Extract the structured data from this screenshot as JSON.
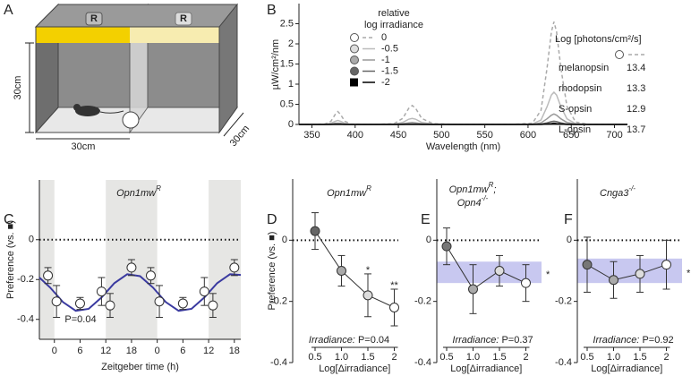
{
  "panel_labels": [
    "A",
    "B",
    "C",
    "D",
    "E",
    "F"
  ],
  "diagram": {
    "lamp_labels": [
      "R",
      "R"
    ],
    "dimensions": [
      "30cm",
      "30cm",
      "30cm"
    ]
  },
  "chart_data": [
    {
      "type": "line",
      "xlabel": "Wavelength (nm)",
      "ylabel": "µW/cm²/nm",
      "legend_title": [
        "relative",
        "log irradiance"
      ],
      "x": [
        335,
        350,
        365,
        372,
        377,
        380,
        383,
        388,
        395,
        420,
        445,
        455,
        462,
        466,
        470,
        477,
        490,
        520,
        580,
        605,
        615,
        622,
        627,
        630,
        633,
        638,
        645,
        655,
        670,
        715
      ],
      "series": [
        {
          "name": "0",
          "color": "#aaaaaa",
          "dash": true,
          "marker": "circle",
          "marker_fill": "#ffffff",
          "values": [
            0,
            0,
            0.01,
            0.08,
            0.25,
            0.32,
            0.25,
            0.08,
            0.01,
            0,
            0.02,
            0.15,
            0.4,
            0.47,
            0.4,
            0.15,
            0.02,
            0,
            0,
            0.03,
            0.35,
            1.4,
            2.3,
            2.55,
            2.3,
            1.4,
            0.45,
            0.06,
            0,
            0
          ]
        },
        {
          "name": "-0.5",
          "color": "#bbbbbb",
          "dash": false,
          "marker": "circle",
          "marker_fill": "#dddddd",
          "values": [
            0,
            0,
            0,
            0.03,
            0.08,
            0.1,
            0.08,
            0.03,
            0,
            0,
            0.01,
            0.05,
            0.13,
            0.15,
            0.13,
            0.05,
            0.01,
            0,
            0,
            0.01,
            0.11,
            0.44,
            0.73,
            0.8,
            0.73,
            0.44,
            0.14,
            0.02,
            0,
            0
          ]
        },
        {
          "name": "-1",
          "color": "#999999",
          "dash": false,
          "marker": "circle",
          "marker_fill": "#aaaaaa",
          "values": [
            0,
            0,
            0,
            0.01,
            0.03,
            0.03,
            0.03,
            0.01,
            0,
            0,
            0,
            0.02,
            0.04,
            0.05,
            0.04,
            0.02,
            0,
            0,
            0,
            0,
            0.04,
            0.14,
            0.23,
            0.26,
            0.23,
            0.14,
            0.05,
            0.01,
            0,
            0
          ]
        },
        {
          "name": "-1.5",
          "color": "#666666",
          "dash": false,
          "marker": "circle",
          "marker_fill": "#666666",
          "values": [
            0,
            0,
            0,
            0,
            0.01,
            0.01,
            0.01,
            0,
            0,
            0,
            0,
            0,
            0.01,
            0.01,
            0.01,
            0,
            0,
            0,
            0,
            0,
            0.01,
            0.04,
            0.07,
            0.08,
            0.07,
            0.04,
            0.01,
            0,
            0,
            0
          ]
        },
        {
          "name": "-2",
          "color": "#000000",
          "dash": false,
          "marker": "square",
          "marker_fill": "#000000",
          "values": [
            0,
            0,
            0,
            0,
            0,
            0,
            0,
            0,
            0,
            0,
            0,
            0,
            0,
            0,
            0,
            0,
            0,
            0,
            0,
            0,
            0,
            0.01,
            0.02,
            0.03,
            0.02,
            0.01,
            0,
            0,
            0,
            0
          ]
        }
      ],
      "xlim": [
        335,
        715
      ],
      "xticks": [
        350,
        400,
        450,
        500,
        550,
        600,
        650,
        700
      ],
      "ylim": [
        0,
        3
      ],
      "yticks": [
        0,
        0.5,
        1,
        1.5,
        2,
        2.5
      ],
      "table": {
        "header": "Log [photons/cm²/s]",
        "rows": [
          {
            "name": "melanopsin",
            "value": 13.4
          },
          {
            "name": "rhodopsin",
            "value": 13.3
          },
          {
            "name": "S-opsin",
            "value": 12.9
          },
          {
            "name": "L-opsin",
            "value": 13.7
          }
        ]
      }
    },
    {
      "type": "scatter",
      "title": [
        {
          "text": "Opn1mw",
          "sup": "R"
        }
      ],
      "ylabel": "Preference (vs. ■)",
      "xlabel": "Zeitgeber time (h)",
      "x": [
        -1.5,
        0.5,
        6,
        11,
        13,
        18,
        22.5,
        24.5,
        30,
        35,
        37,
        42
      ],
      "values": [
        -0.18,
        -0.31,
        -0.32,
        -0.26,
        -0.33,
        -0.14,
        -0.18,
        -0.31,
        -0.32,
        -0.26,
        -0.33,
        -0.14
      ],
      "errors": [
        0.04,
        0.08,
        0.03,
        0.07,
        0.06,
        0.04,
        0.04,
        0.08,
        0.03,
        0.07,
        0.06,
        0.04
      ],
      "marker_fill": "#ffffff",
      "xlim": [
        -3.5,
        43.5
      ],
      "xticks": [
        0,
        6,
        12,
        18,
        {
          "value": 24,
          "label": "0"
        },
        {
          "value": 30,
          "label": "6"
        },
        {
          "value": 36,
          "label": "12"
        },
        {
          "value": 42,
          "label": "18"
        }
      ],
      "ylim": [
        -0.5,
        0.3
      ],
      "yticks": [
        -0.4,
        -0.2,
        0
      ],
      "reference_line": 0,
      "shaded": [
        [
          -3.5,
          0
        ],
        [
          12,
          24
        ],
        [
          36,
          43.5
        ]
      ],
      "shade_color": "#e6e6e4",
      "fit": {
        "color": "#3a3aa0",
        "x": [
          -3.5,
          -1,
          2,
          5,
          8,
          11,
          14,
          17,
          20,
          23,
          26,
          29,
          32,
          35,
          38,
          41,
          43.5
        ],
        "values": [
          -0.19,
          -0.24,
          -0.313,
          -0.357,
          -0.347,
          -0.29,
          -0.218,
          -0.173,
          -0.183,
          -0.24,
          -0.313,
          -0.357,
          -0.347,
          -0.29,
          -0.218,
          -0.173,
          -0.177
        ]
      },
      "annotation": "P=0.04"
    },
    {
      "type": "category_scatter",
      "title": [
        {
          "text": "Opn1mw",
          "sup": "R"
        }
      ],
      "ylabel": "Preference (vs. ■)",
      "xlabel": "Log[Δirradiance]",
      "categories": [
        "0.5",
        "1.0",
        "1.5",
        "2"
      ],
      "values": [
        0.03,
        -0.1,
        -0.18,
        -0.22
      ],
      "errors": [
        0.06,
        0.05,
        0.07,
        0.06
      ],
      "marker_colors": [
        "#666666",
        "#aaaaaa",
        "#dddddd",
        "#ffffff"
      ],
      "significance": [
        null,
        null,
        "*",
        "**"
      ],
      "ylim": [
        -0.4,
        0.2
      ],
      "yticks": [
        -0.4,
        -0.2,
        0
      ],
      "reference_line": 0,
      "annotation_label": "Irradiance:",
      "annotation": "P=0.04"
    },
    {
      "type": "category_scatter",
      "title": [
        {
          "text": "Opn1mw",
          "sup": "R",
          "after": ";"
        },
        {
          "text": "Opn4",
          "sup": "-/-"
        }
      ],
      "xlabel": "Log[Δirradiance]",
      "categories": [
        "0.5",
        "1.0",
        "1.5",
        "2"
      ],
      "values": [
        -0.02,
        -0.16,
        -0.1,
        -0.14
      ],
      "errors": [
        0.06,
        0.08,
        0.05,
        0.06
      ],
      "marker_colors": [
        "#777777",
        "#aaaaaa",
        "#dddddd",
        "#ffffff"
      ],
      "band": [
        -0.14,
        -0.07
      ],
      "band_color": "#c8c8f0",
      "band_label": "*",
      "band_label_color": "#4040a0",
      "ylim": [
        -0.4,
        0.2
      ],
      "yticks": [
        -0.4,
        -0.2,
        0
      ],
      "reference_line": 0,
      "annotation_label": "Irradiance:",
      "annotation": "P=0.37"
    },
    {
      "type": "category_scatter",
      "title": [
        {
          "text": "Cnga3",
          "sup": "-/-"
        }
      ],
      "xlabel": "Log[Δirradiance]",
      "categories": [
        "0.5",
        "1.0",
        "1.5",
        "2"
      ],
      "values": [
        -0.08,
        -0.13,
        -0.11,
        -0.08
      ],
      "errors": [
        0.09,
        0.06,
        0.06,
        0.08
      ],
      "marker_colors": [
        "#777777",
        "#aaaaaa",
        "#dddddd",
        "#ffffff"
      ],
      "band": [
        -0.14,
        -0.06
      ],
      "band_color": "#c8c8f0",
      "band_label": "*",
      "band_label_color": "#4040a0",
      "ylim": [
        -0.4,
        0.2
      ],
      "yticks": [
        -0.4,
        -0.2,
        0
      ],
      "reference_line": 0,
      "annotation_label": "Irradiance:",
      "annotation": "P=0.92"
    }
  ]
}
